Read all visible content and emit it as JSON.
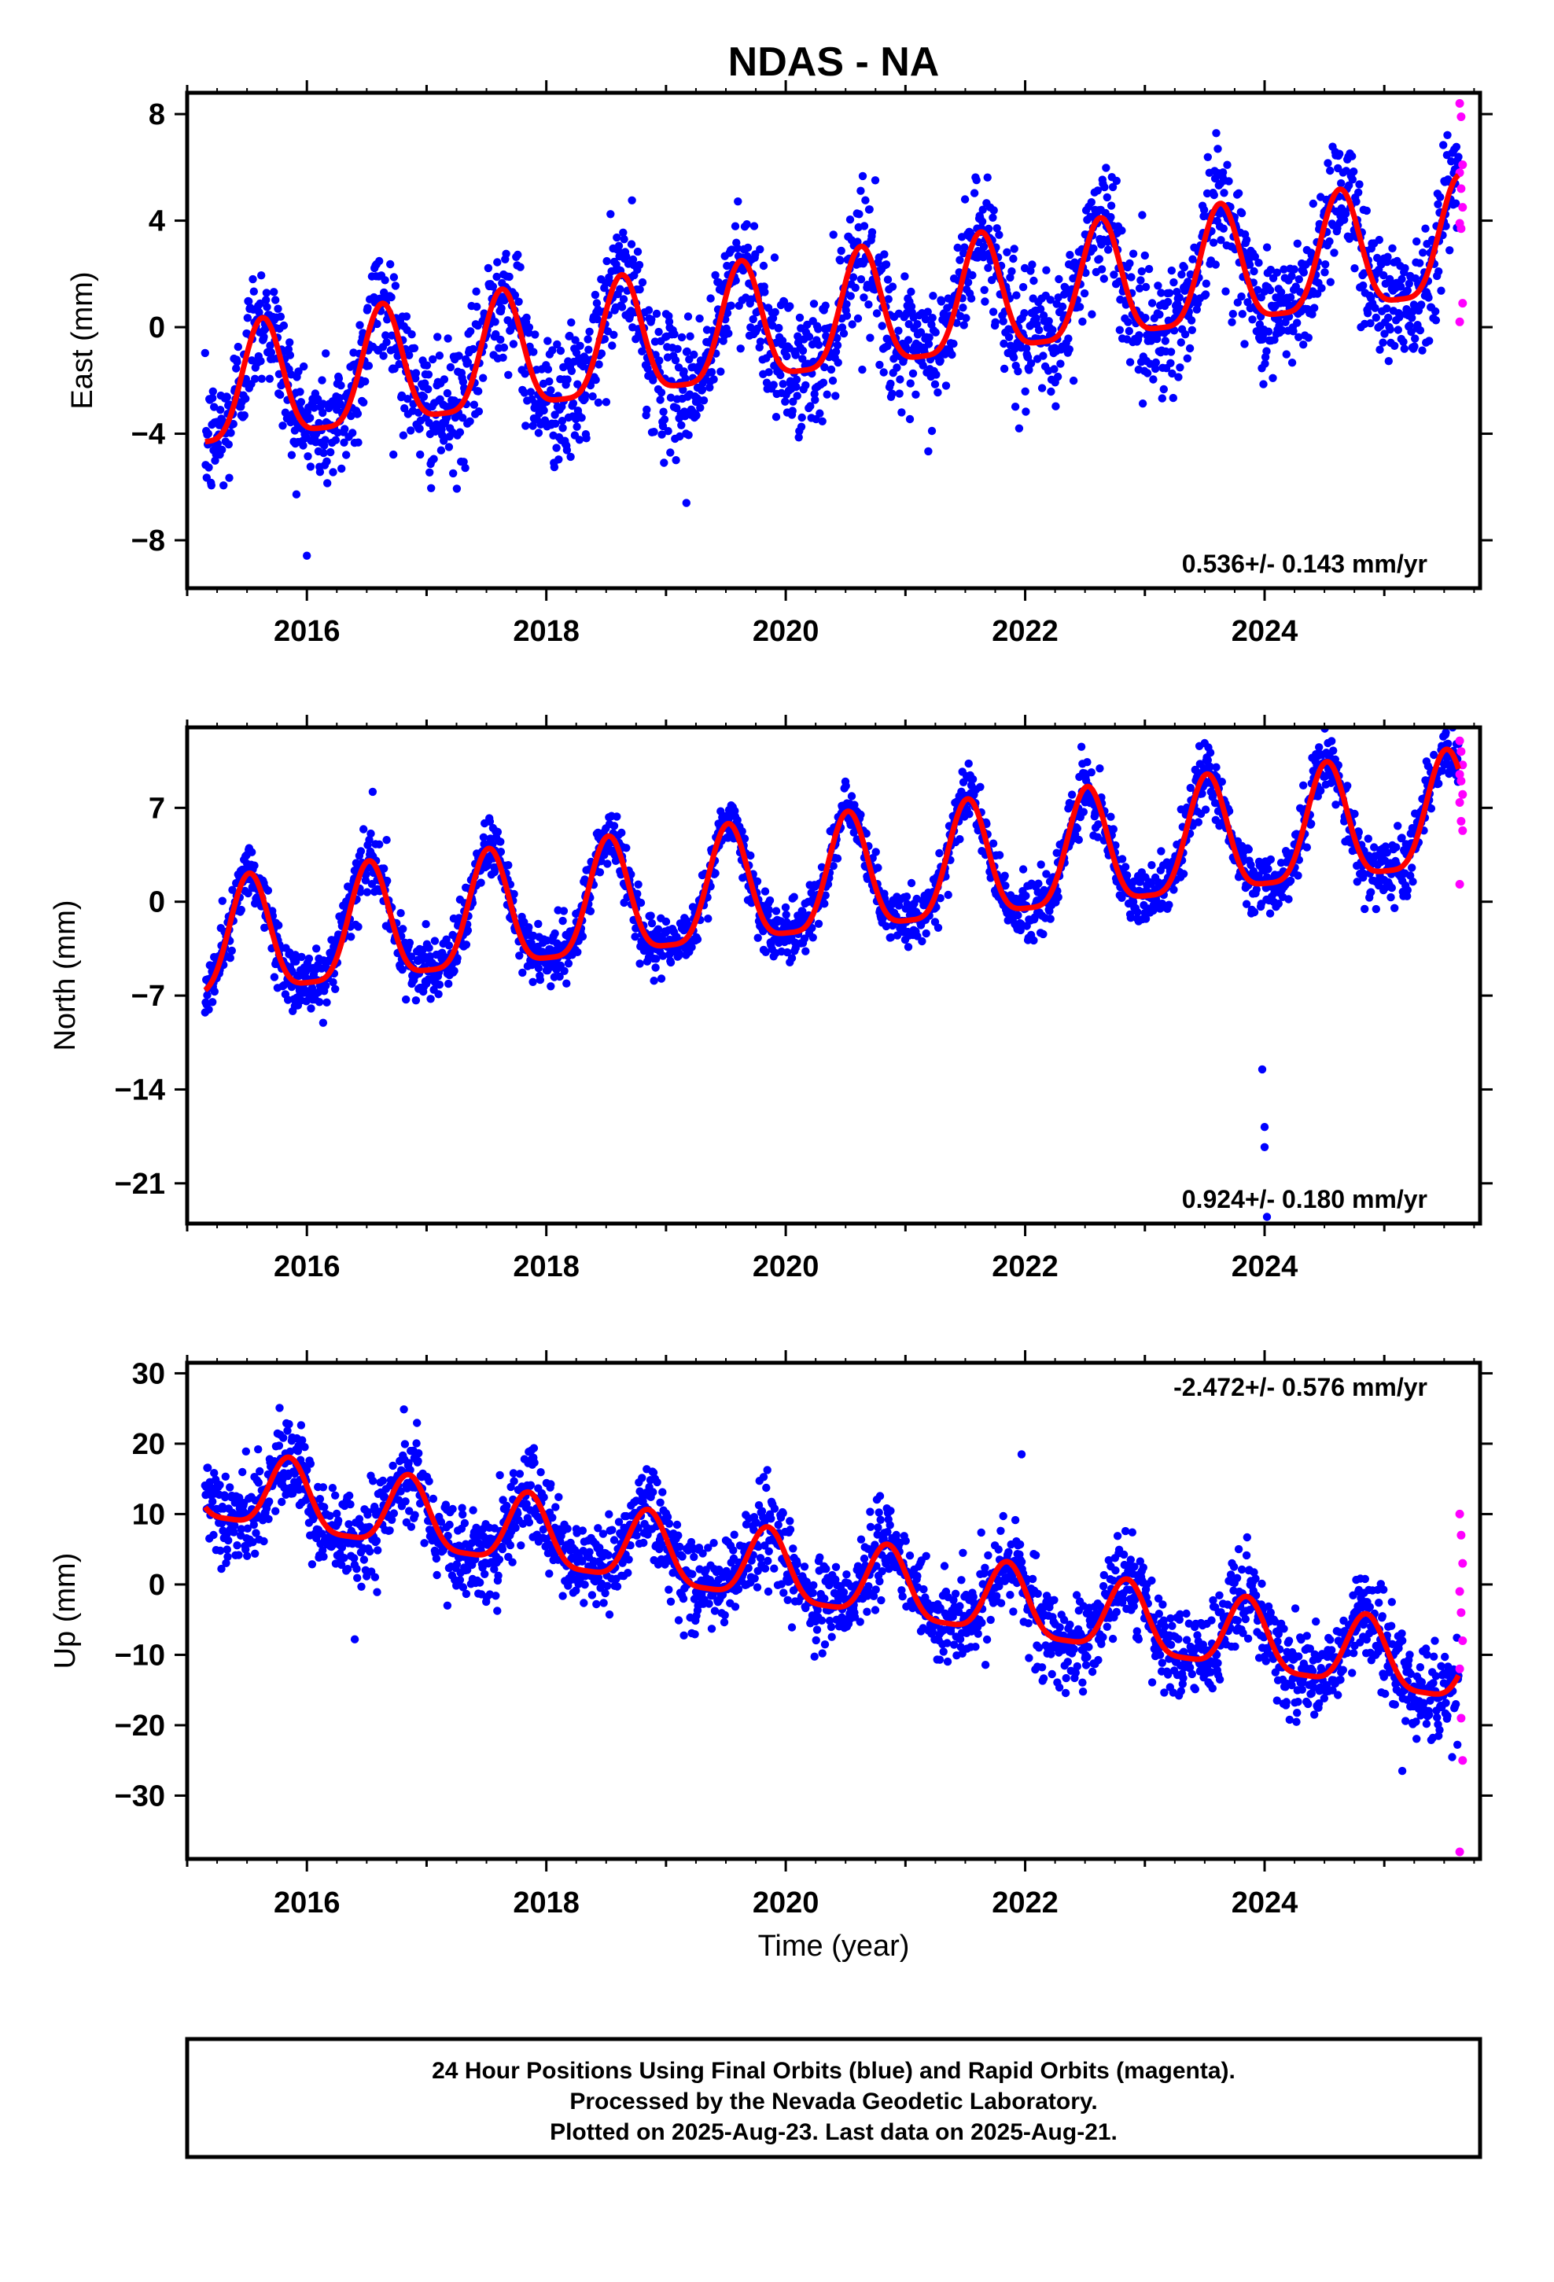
{
  "title": "NDAS - NA",
  "xlabel": "Time (year)",
  "x_ticks": [
    "2016",
    "2018",
    "2020",
    "2022",
    "2024"
  ],
  "colors": {
    "final_orbits": "#0000ff",
    "rapid_orbits": "#ff00ff",
    "model": "#ff0000",
    "frame": "#000000"
  },
  "chart_data": [
    {
      "type": "scatter",
      "ylabel": "East (mm)",
      "rate_text": "0.536+/- 0.143 mm/yr",
      "xlim": [
        2015.0,
        2025.8
      ],
      "ylim": [
        -9.8,
        8.8
      ],
      "y_ticks": [
        -8,
        -4,
        0,
        4,
        8
      ],
      "y_tick_labels": [
        "−8",
        "−4",
        "0",
        "4",
        "8"
      ],
      "rate_mm_yr": 0.536,
      "annual_amplitude_mm": 2.2,
      "peak_phase_year_fraction": 0.63,
      "first_epoch": 2015.15,
      "first_model_value": -4.3,
      "last_model_value": 4.6,
      "scatter_sigma_mm": 1.2,
      "outliers": [
        {
          "x": 2019.17,
          "y": -6.6
        },
        {
          "x": 2021.95,
          "y": -3.8
        }
      ],
      "rapid_values": [
        8.4,
        7.9,
        6.1,
        5.8,
        5.2,
        4.5,
        3.9,
        3.7,
        0.9,
        0.2
      ]
    },
    {
      "type": "scatter",
      "ylabel": "North (mm)",
      "rate_text": "0.924+/- 0.180 mm/yr",
      "xlim": [
        2015.0,
        2025.8
      ],
      "ylim": [
        -24.0,
        13.0
      ],
      "y_ticks": [
        -21,
        -14,
        -7,
        0,
        7
      ],
      "y_tick_labels": [
        "−21",
        "−14",
        "−7",
        "0",
        "7"
      ],
      "rate_mm_yr": 0.924,
      "annual_amplitude_mm": 4.3,
      "peak_phase_year_fraction": 0.52,
      "first_epoch": 2015.15,
      "first_model_value": -6.6,
      "last_model_value": 9.6,
      "scatter_sigma_mm": 1.1,
      "outliers": [
        {
          "x": 2023.98,
          "y": -12.5
        },
        {
          "x": 2024.0,
          "y": -16.8
        },
        {
          "x": 2024.0,
          "y": -18.3
        },
        {
          "x": 2024.02,
          "y": -23.5
        },
        {
          "x": 2016.55,
          "y": 8.2
        }
      ],
      "rapid_values": [
        12.0,
        11.2,
        10.2,
        9.5,
        9.0,
        8.0,
        7.4,
        6.0,
        5.3,
        1.3
      ]
    },
    {
      "type": "scatter",
      "ylabel": "Up (mm)",
      "rate_text": "-2.472+/- 0.576 mm/yr",
      "xlim": [
        2015.0,
        2025.8
      ],
      "ylim": [
        -39.0,
        31.5
      ],
      "y_ticks": [
        -30,
        -20,
        -10,
        0,
        10,
        20,
        30
      ],
      "y_tick_labels": [
        "−30",
        "−20",
        "−10",
        "0",
        "10",
        "20",
        "30"
      ],
      "rate_mm_yr": -2.472,
      "annual_amplitude_mm": 5.0,
      "peak_phase_year_fraction": 0.85,
      "first_epoch": 2015.15,
      "first_model_value": 11.0,
      "last_model_value": -13.0,
      "scatter_sigma_mm": 3.2,
      "outliers": [
        {
          "x": 2021.97,
          "y": 18.5
        },
        {
          "x": 2016.4,
          "y": -7.8
        },
        {
          "x": 2025.15,
          "y": -26.5
        }
      ],
      "rapid_values": [
        10.0,
        7.0,
        3.0,
        -1.0,
        -4.0,
        -8.0,
        -12.0,
        -19.0,
        -25.0,
        -38.0
      ]
    }
  ],
  "footer": {
    "line1": "24 Hour Positions Using Final Orbits (blue) and Rapid Orbits (magenta).",
    "line2": "Processed by the Nevada Geodetic Laboratory.",
    "line3": "Plotted on 2025-Aug-23. Last data on 2025-Aug-21."
  }
}
